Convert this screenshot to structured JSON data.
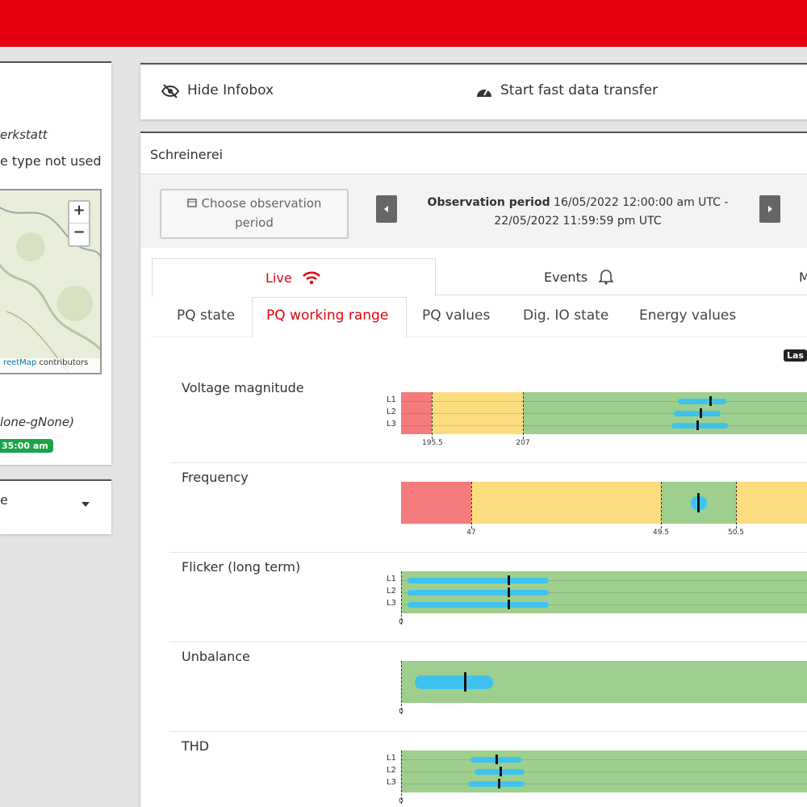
{
  "top_bar": {
    "hide_infobox": "Hide Infobox",
    "fast_transfer": "Start fast data transfer"
  },
  "sidebar": {
    "location": "erkstatt",
    "device_type": "e type not used",
    "map_zoom_in": "+",
    "map_zoom_out": "−",
    "map_attribution_link": "reetMap",
    "map_attribution": "contributors",
    "group": "lone-gNone)",
    "time_badge": "35:00 am",
    "select": "e"
  },
  "panel": {
    "title": "Schreinerei",
    "choose_period": "Choose observation period",
    "period_label": "Observation period",
    "period_value": "16/05/2022 12:00:00 am UTC - 22/05/2022 11:59:59 pm UTC",
    "tabs": [
      "Live",
      "Events",
      "M"
    ],
    "subtabs": [
      "PQ state",
      "PQ working range",
      "PQ values",
      "Dig. IO state",
      "Energy values"
    ],
    "badge": "Las",
    "rows": [
      {
        "label": "Voltage magnitude",
        "phases": [
          "L1",
          "L2",
          "L3"
        ],
        "ticks": [
          195.5,
          207
        ]
      },
      {
        "label": "Frequency",
        "ticks": [
          47,
          49.5,
          50.5
        ]
      },
      {
        "label": "Flicker (long term)",
        "phases": [
          "L1",
          "L2",
          "L3"
        ],
        "ticks": [
          0
        ]
      },
      {
        "label": "Unbalance",
        "ticks": [
          0
        ]
      },
      {
        "label": "THD",
        "phases": [
          "L1",
          "L2",
          "L3"
        ],
        "ticks": [
          0
        ]
      }
    ]
  }
}
